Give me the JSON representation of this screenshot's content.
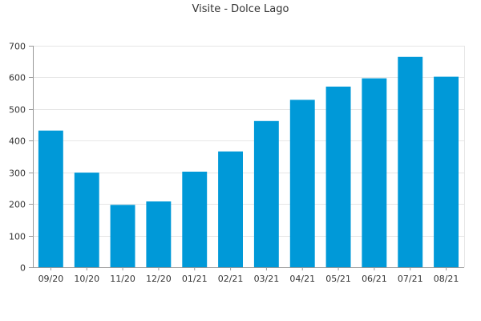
{
  "chart_data": {
    "type": "bar",
    "title": "Visite - Dolce Lago",
    "xlabel": "",
    "ylabel": "",
    "categories": [
      "09/20",
      "10/20",
      "11/20",
      "12/20",
      "01/21",
      "02/21",
      "03/21",
      "04/21",
      "05/21",
      "06/21",
      "07/21",
      "08/21"
    ],
    "values": [
      432,
      299,
      197,
      208,
      302,
      366,
      462,
      529,
      571,
      597,
      665,
      602
    ],
    "ylim": [
      0,
      700
    ],
    "yticks": [
      0,
      100,
      200,
      300,
      400,
      500,
      600,
      700
    ],
    "ytick_labels": [
      "0",
      "100",
      "200",
      "300",
      "400",
      "500",
      "600",
      "700"
    ],
    "grid": true,
    "legend": "none",
    "bar_color": "#0099d8"
  }
}
